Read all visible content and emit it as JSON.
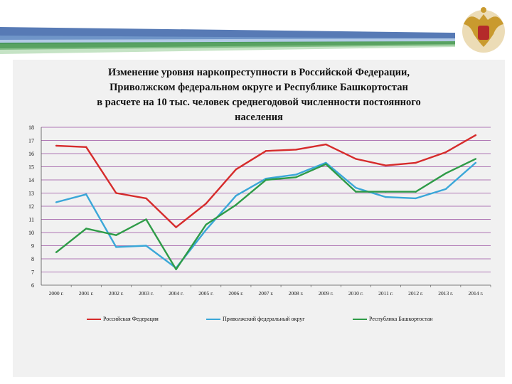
{
  "colors": {
    "banner_blue": "#1f4e9c",
    "banner_green": "#2e8b3a",
    "panel_bg": "#f1f1f1",
    "grid": "#9a4fa0",
    "series_rf": "#d62b2b",
    "series_pfo": "#3aa7d8",
    "series_rb": "#2e9b47"
  },
  "chart_data": {
    "type": "line",
    "title": "Изменение уровня наркопреступности в Российской Федерации,\nПриволжском федеральном округе и Республике Башкортостан\nв расчете на 10 тыс. человек среднегодовой численности постоянного\nнаселения",
    "x": [
      "2000 г.",
      "2001 г.",
      "2002 г.",
      "2003 г.",
      "2004 г.",
      "2005 г.",
      "2006 г.",
      "2007 г.",
      "2008 г.",
      "2009 г.",
      "2010 г.",
      "2011 г.",
      "2012 г.",
      "2013 г.",
      "2014 г."
    ],
    "ylim": [
      6,
      18
    ],
    "yticks": [
      6,
      7,
      8,
      9,
      10,
      11,
      12,
      13,
      14,
      15,
      16,
      17,
      18
    ],
    "grid": true,
    "legend_position": "bottom",
    "series": [
      {
        "name": "Российская Федерация",
        "color": "#d62b2b",
        "values": [
          16.6,
          16.5,
          13.0,
          12.6,
          10.4,
          12.2,
          14.8,
          16.2,
          16.3,
          16.7,
          15.6,
          15.1,
          15.3,
          16.1,
          17.4
        ]
      },
      {
        "name": "Приволжский федеральный округ",
        "color": "#3aa7d8",
        "values": [
          12.3,
          12.9,
          8.9,
          9.0,
          7.3,
          10.2,
          12.8,
          14.1,
          14.4,
          15.3,
          13.4,
          12.7,
          12.6,
          13.3,
          15.3
        ]
      },
      {
        "name": "Республика Башкортостан",
        "color": "#2e9b47",
        "values": [
          8.5,
          10.3,
          9.8,
          11.0,
          7.2,
          10.6,
          12.1,
          14.0,
          14.2,
          15.2,
          13.1,
          13.1,
          13.1,
          14.5,
          15.6
        ]
      }
    ]
  }
}
